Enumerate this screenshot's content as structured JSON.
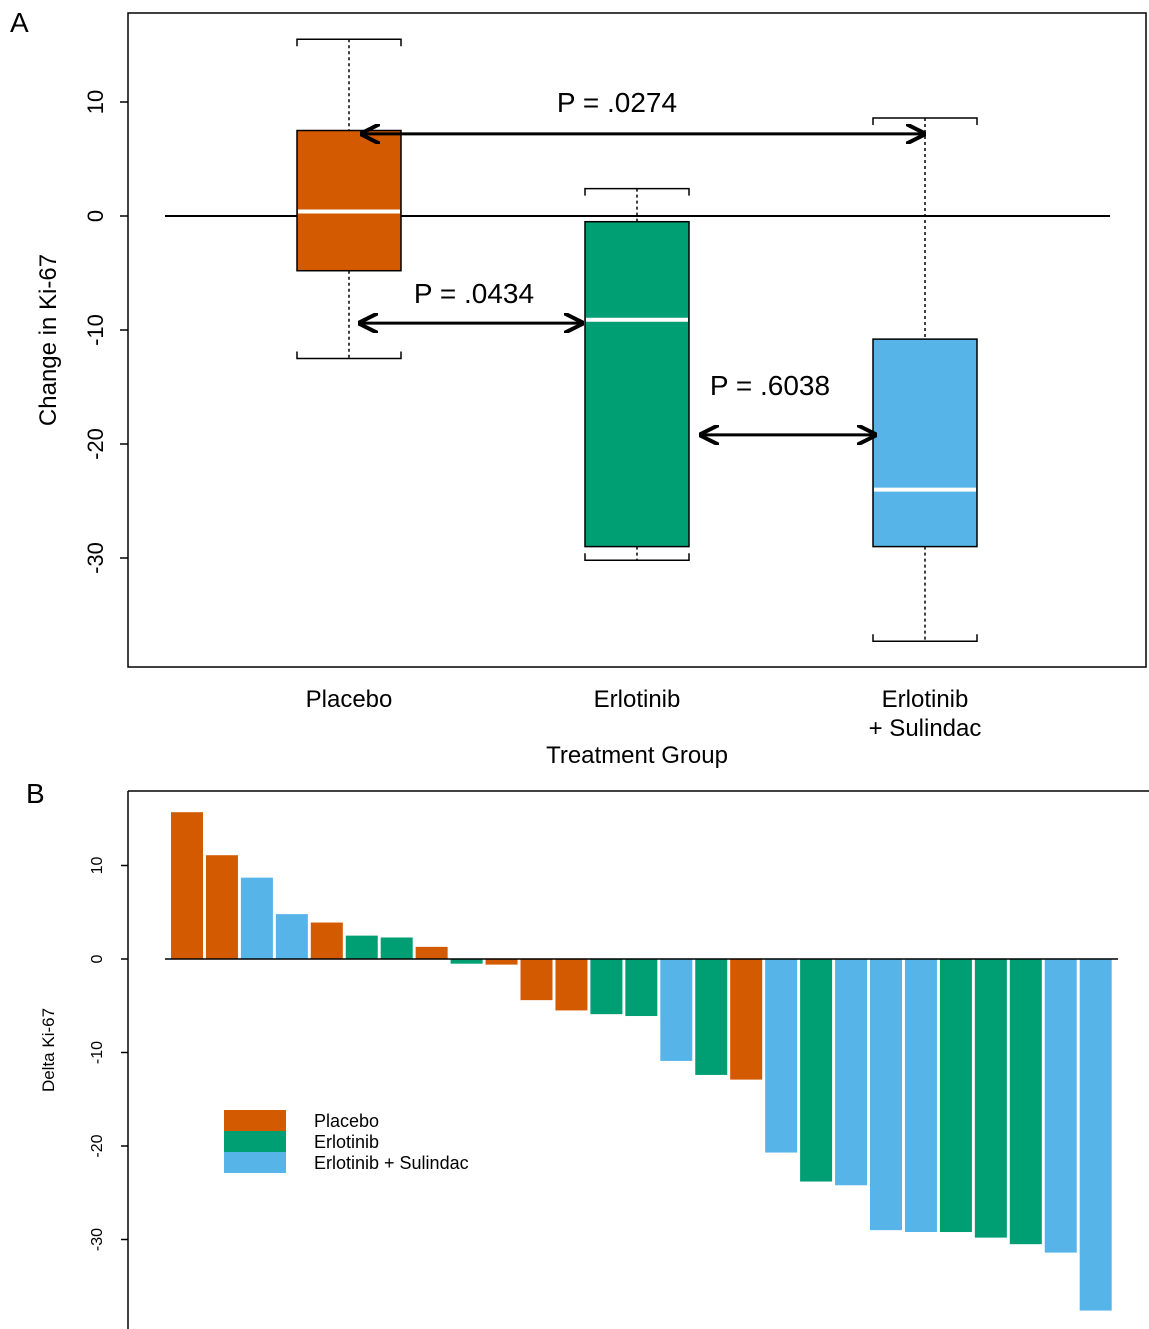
{
  "colors": {
    "placebo": "#D45A00",
    "erlotinib": "#009E73",
    "erlotinib_sulindac": "#56B4E9"
  },
  "chart_data": [
    {
      "panel": "A",
      "type": "box",
      "xlabel": "Treatment Group",
      "ylabel": "Change in Ki-67",
      "ylim": [
        -39,
        18
      ],
      "yticks": [
        10,
        0,
        -10,
        -20,
        -30
      ],
      "reference_line": 0,
      "groups": [
        {
          "key": "placebo",
          "label_lines": [
            "Placebo"
          ],
          "whisker_high": 15.5,
          "q3": 7.5,
          "median": 0.4,
          "q1": -4.8,
          "whisker_low": -12.5
        },
        {
          "key": "erlotinib",
          "label_lines": [
            "Erlotinib"
          ],
          "whisker_high": 2.4,
          "q3": -0.5,
          "median": -9.1,
          "q1": -29.0,
          "whisker_low": -30.2
        },
        {
          "key": "erlotinib_sulindac",
          "label_lines": [
            "Erlotinib",
            "+ Sulindac"
          ],
          "whisker_high": 8.6,
          "q3": -10.8,
          "median": -24.0,
          "q1": -29.0,
          "whisker_low": -37.3
        }
      ],
      "comparisons": [
        {
          "label": "P = .0274",
          "from": "placebo",
          "to": "erlotinib_sulindac",
          "y": 7.2
        },
        {
          "label": "P = .0434",
          "from": "placebo",
          "to": "erlotinib",
          "y": -9.4
        },
        {
          "label": "P = .6038",
          "from": "erlotinib",
          "to": "erlotinib_sulindac",
          "y": -19.2
        }
      ]
    },
    {
      "panel": "B",
      "type": "bar",
      "ylabel": "Delta Ki-67",
      "ylim": [
        -39,
        18
      ],
      "yticks": [
        10,
        0,
        -10,
        -20,
        -30
      ],
      "legend": [
        {
          "key": "placebo",
          "label": "Placebo"
        },
        {
          "key": "erlotinib",
          "label": "Erlotinib"
        },
        {
          "key": "erlotinib_sulindac",
          "label": "Erlotinib + Sulindac"
        }
      ],
      "values": [
        15.7,
        11.1,
        8.7,
        4.8,
        3.9,
        2.5,
        2.3,
        1.3,
        -0.5,
        -0.6,
        -4.4,
        -5.5,
        -5.9,
        -6.1,
        -10.9,
        -12.4,
        -12.9,
        -20.7,
        -23.8,
        -24.2,
        -29.0,
        -29.2,
        -29.2,
        -29.8,
        -30.5,
        -31.4,
        -37.6
      ],
      "groups": [
        "placebo",
        "placebo",
        "erlotinib_sulindac",
        "erlotinib_sulindac",
        "placebo",
        "erlotinib",
        "erlotinib",
        "placebo",
        "erlotinib",
        "placebo",
        "placebo",
        "placebo",
        "erlotinib",
        "erlotinib",
        "erlotinib_sulindac",
        "erlotinib",
        "placebo",
        "erlotinib_sulindac",
        "erlotinib",
        "erlotinib_sulindac",
        "erlotinib_sulindac",
        "erlotinib_sulindac",
        "erlotinib",
        "erlotinib",
        "erlotinib",
        "erlotinib_sulindac",
        "erlotinib_sulindac"
      ]
    }
  ],
  "panels": {
    "a_letter": "A",
    "b_letter": "B"
  }
}
